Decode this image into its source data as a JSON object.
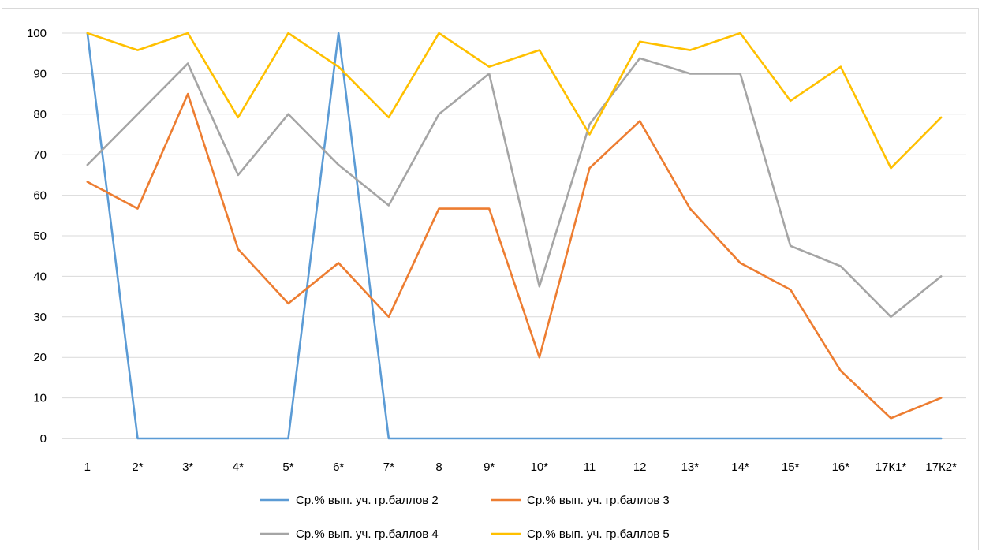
{
  "chart_data": {
    "type": "line",
    "title": "",
    "xlabel": "",
    "ylabel": "",
    "ylim": [
      0,
      100
    ],
    "yticks": [
      0,
      10,
      20,
      30,
      40,
      50,
      60,
      70,
      80,
      90,
      100
    ],
    "grid": true,
    "legend_position": "bottom",
    "categories": [
      "1",
      "2*",
      "3*",
      "4*",
      "5*",
      "6*",
      "7*",
      "8",
      "9*",
      "10*",
      "11",
      "12",
      "13*",
      "14*",
      "15*",
      "16*",
      "17К1*",
      "17К2*"
    ],
    "series": [
      {
        "name": "Ср.% вып. уч. гр.баллов 2",
        "color": "#5b9bd5",
        "values": [
          100,
          0,
          0,
          0,
          0,
          100,
          0,
          0,
          0,
          0,
          0,
          0,
          0,
          0,
          0,
          0,
          0,
          0
        ]
      },
      {
        "name": "Ср.% вып. уч. гр.баллов 3",
        "color": "#ed7d31",
        "values": [
          63.3,
          56.7,
          85,
          46.7,
          33.3,
          43.3,
          30,
          56.7,
          56.7,
          20,
          66.7,
          78.3,
          56.7,
          43.3,
          36.7,
          16.7,
          5,
          10
        ]
      },
      {
        "name": "Ср.% вып. уч. гр.баллов 4",
        "color": "#a5a5a5",
        "values": [
          67.5,
          80,
          92.5,
          65,
          80,
          67.5,
          57.5,
          80,
          90,
          37.5,
          77.5,
          93.8,
          90,
          90,
          47.5,
          42.5,
          30,
          40
        ]
      },
      {
        "name": "Ср.% вып. уч. гр.баллов 5",
        "color": "#ffc000",
        "values": [
          100,
          95.8,
          100,
          79.2,
          100,
          91.7,
          79.2,
          100,
          91.7,
          95.8,
          75,
          97.9,
          95.8,
          100,
          83.3,
          91.7,
          66.7,
          79.2
        ]
      }
    ]
  }
}
